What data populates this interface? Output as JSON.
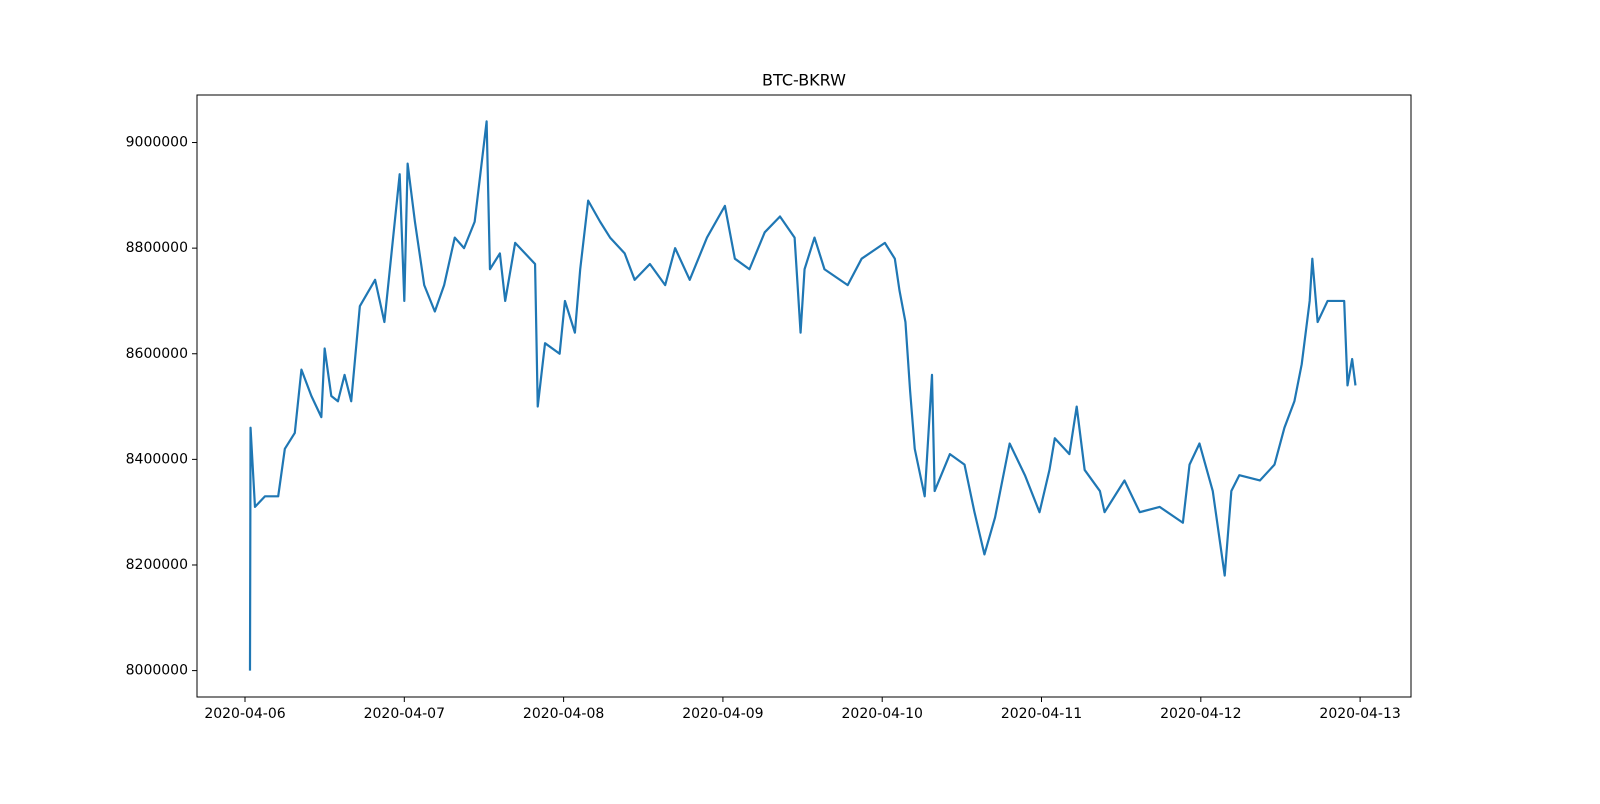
{
  "chart_data": {
    "type": "line",
    "title": "BTC-BKRW",
    "x": [
      "2020-04-06T00:45",
      "2020-04-06T00:50",
      "2020-04-06T01:30",
      "2020-04-06T03:00",
      "2020-04-06T05:00",
      "2020-04-06T06:00",
      "2020-04-06T07:30",
      "2020-04-06T08:30",
      "2020-04-06T10:00",
      "2020-04-06T11:30",
      "2020-04-06T12:00",
      "2020-04-06T13:00",
      "2020-04-06T14:00",
      "2020-04-06T15:00",
      "2020-04-06T16:00",
      "2020-04-06T17:18",
      "2020-04-06T19:36",
      "2020-04-06T21:00",
      "2020-04-06T23:18",
      "2020-04-07T00:00",
      "2020-04-07T00:30",
      "2020-04-07T01:36",
      "2020-04-07T03:00",
      "2020-04-07T04:36",
      "2020-04-07T06:00",
      "2020-04-07T07:36",
      "2020-04-07T09:00",
      "2020-04-07T10:36",
      "2020-04-07T12:24",
      "2020-04-07T12:54",
      "2020-04-07T14:24",
      "2020-04-07T15:12",
      "2020-04-07T16:42",
      "2020-04-07T19:42",
      "2020-04-07T20:06",
      "2020-04-07T21:12",
      "2020-04-07T23:24",
      "2020-04-08T00:12",
      "2020-04-08T01:42",
      "2020-04-08T02:30",
      "2020-04-08T03:42",
      "2020-04-08T05:30",
      "2020-04-08T07:00",
      "2020-04-08T09:12",
      "2020-04-08T10:42",
      "2020-04-08T13:00",
      "2020-04-08T15:18",
      "2020-04-08T16:48",
      "2020-04-08T19:00",
      "2020-04-08T21:36",
      "2020-04-09T00:18",
      "2020-04-09T01:48",
      "2020-04-09T04:00",
      "2020-04-09T06:18",
      "2020-04-09T08:36",
      "2020-04-09T10:48",
      "2020-04-09T11:42",
      "2020-04-09T12:18",
      "2020-04-09T13:48",
      "2020-04-09T15:18",
      "2020-04-09T18:48",
      "2020-04-09T20:54",
      "2020-04-10T00:24",
      "2020-04-10T01:54",
      "2020-04-10T02:36",
      "2020-04-10T03:30",
      "2020-04-10T04:12",
      "2020-04-10T04:54",
      "2020-04-10T06:24",
      "2020-04-10T07:30",
      "2020-04-10T07:54",
      "2020-04-10T10:12",
      "2020-04-10T12:24",
      "2020-04-10T13:54",
      "2020-04-10T15:24",
      "2020-04-10T17:00",
      "2020-04-10T19:12",
      "2020-04-10T21:30",
      "2020-04-10T23:42",
      "2020-04-11T01:12",
      "2020-04-11T02:00",
      "2020-04-11T04:12",
      "2020-04-11T05:18",
      "2020-04-11T06:30",
      "2020-04-11T08:48",
      "2020-04-11T09:30",
      "2020-04-11T12:30",
      "2020-04-11T14:48",
      "2020-04-11T17:48",
      "2020-04-11T21:18",
      "2020-04-11T22:18",
      "2020-04-11T23:48",
      "2020-04-12T01:48",
      "2020-04-12T03:36",
      "2020-04-12T04:36",
      "2020-04-12T05:48",
      "2020-04-12T08:54",
      "2020-04-12T11:06",
      "2020-04-12T12:36",
      "2020-04-12T14:06",
      "2020-04-12T15:12",
      "2020-04-12T16:24",
      "2020-04-12T16:48",
      "2020-04-12T17:36",
      "2020-04-12T19:06",
      "2020-04-12T21:36",
      "2020-04-12T22:06",
      "2020-04-12T22:48",
      "2020-04-12T23:18"
    ],
    "series": [
      {
        "name": "BTC-BKRW",
        "color": "#1f77b4",
        "values": [
          8000000,
          8460000,
          8310000,
          8330000,
          8330000,
          8420000,
          8450000,
          8570000,
          8520000,
          8480000,
          8610000,
          8520000,
          8510000,
          8560000,
          8510000,
          8690000,
          8740000,
          8660000,
          8940000,
          8700000,
          8960000,
          8850000,
          8730000,
          8680000,
          8730000,
          8820000,
          8800000,
          8850000,
          9040000,
          8760000,
          8790000,
          8700000,
          8810000,
          8770000,
          8500000,
          8620000,
          8600000,
          8700000,
          8640000,
          8760000,
          8890000,
          8850000,
          8820000,
          8790000,
          8740000,
          8770000,
          8730000,
          8800000,
          8740000,
          8820000,
          8880000,
          8780000,
          8760000,
          8830000,
          8860000,
          8820000,
          8640000,
          8760000,
          8820000,
          8760000,
          8730000,
          8780000,
          8810000,
          8780000,
          8720000,
          8660000,
          8530000,
          8420000,
          8330000,
          8560000,
          8340000,
          8410000,
          8390000,
          8300000,
          8220000,
          8290000,
          8430000,
          8370000,
          8300000,
          8380000,
          8440000,
          8410000,
          8500000,
          8380000,
          8340000,
          8300000,
          8360000,
          8300000,
          8310000,
          8280000,
          8390000,
          8430000,
          8340000,
          8180000,
          8340000,
          8370000,
          8360000,
          8390000,
          8460000,
          8510000,
          8580000,
          8700000,
          8780000,
          8660000,
          8700000,
          8700000,
          8540000,
          8590000,
          8540000
        ]
      }
    ],
    "xlim": [
      "2020-04-05T16:46",
      "2020-04-13T07:40"
    ],
    "xticks": [
      "2020-04-06",
      "2020-04-07",
      "2020-04-08",
      "2020-04-09",
      "2020-04-10",
      "2020-04-11",
      "2020-04-12",
      "2020-04-13"
    ],
    "ylim": [
      7950000,
      9090000
    ],
    "yticks": [
      8000000,
      8200000,
      8400000,
      8600000,
      8800000,
      9000000
    ]
  }
}
